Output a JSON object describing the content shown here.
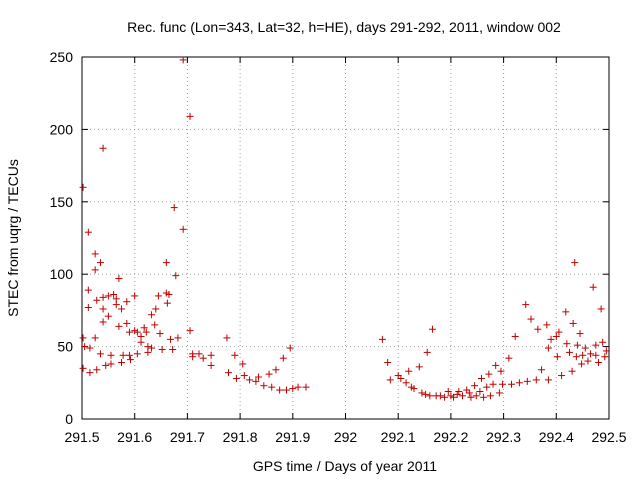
{
  "chart_data": {
    "type": "scatter",
    "title": "Rec. func (Lon=343, Lat=32, h=HE), days 291-292, 2011, window 002",
    "xlabel": "GPS time / Days of year 2011",
    "ylabel": "STEC from uqrg / TECUs",
    "xlim": [
      291.5,
      292.5
    ],
    "ylim": [
      0,
      250
    ],
    "xticks": [
      "291.5",
      "291.6",
      "291.7",
      "291.8",
      "291.9",
      "292",
      "292.1",
      "292.2",
      "292.3",
      "292.4",
      "292.5"
    ],
    "yticks": [
      "0",
      "50",
      "100",
      "150",
      "200",
      "250"
    ],
    "grid": true,
    "marker": "+",
    "color": "#c00000",
    "series": [
      {
        "name": "STEC",
        "points": [
          [
            291.502,
            160
          ],
          [
            291.502,
            56
          ],
          [
            291.502,
            35
          ],
          [
            291.505,
            50
          ],
          [
            291.512,
            129
          ],
          [
            291.512,
            89
          ],
          [
            291.512,
            77
          ],
          [
            291.515,
            49
          ],
          [
            291.515,
            32
          ],
          [
            291.525,
            114
          ],
          [
            291.525,
            103
          ],
          [
            291.525,
            56
          ],
          [
            291.528,
            82
          ],
          [
            291.528,
            34
          ],
          [
            291.535,
            108
          ],
          [
            291.535,
            45
          ],
          [
            291.54,
            187
          ],
          [
            291.54,
            84
          ],
          [
            291.54,
            76
          ],
          [
            291.54,
            67
          ],
          [
            291.545,
            37
          ],
          [
            291.55,
            85
          ],
          [
            291.55,
            71
          ],
          [
            291.555,
            44
          ],
          [
            291.555,
            38
          ],
          [
            291.56,
            86
          ],
          [
            291.565,
            83
          ],
          [
            291.565,
            79
          ],
          [
            291.57,
            97
          ],
          [
            291.57,
            64
          ],
          [
            291.575,
            76
          ],
          [
            291.575,
            39
          ],
          [
            291.578,
            44
          ],
          [
            291.585,
            81
          ],
          [
            291.585,
            66
          ],
          [
            291.59,
            60
          ],
          [
            291.59,
            44
          ],
          [
            291.592,
            41
          ],
          [
            291.6,
            85
          ],
          [
            291.6,
            61
          ],
          [
            291.605,
            60
          ],
          [
            291.605,
            45
          ],
          [
            291.612,
            57
          ],
          [
            291.612,
            53
          ],
          [
            291.618,
            63
          ],
          [
            291.622,
            60
          ],
          [
            291.625,
            50
          ],
          [
            291.625,
            46
          ],
          [
            291.632,
            72
          ],
          [
            291.632,
            49
          ],
          [
            291.638,
            65
          ],
          [
            291.64,
            76
          ],
          [
            291.645,
            85
          ],
          [
            291.648,
            59
          ],
          [
            291.652,
            48
          ],
          [
            291.66,
            108
          ],
          [
            291.66,
            87
          ],
          [
            291.662,
            80
          ],
          [
            291.665,
            86
          ],
          [
            291.668,
            55
          ],
          [
            291.672,
            48
          ],
          [
            291.675,
            146
          ],
          [
            291.678,
            99
          ],
          [
            291.682,
            56
          ],
          [
            291.692,
            131
          ],
          [
            291.692,
            248
          ],
          [
            291.705,
            209
          ],
          [
            291.705,
            61
          ],
          [
            291.71,
            45
          ],
          [
            291.71,
            43
          ],
          [
            291.722,
            45
          ],
          [
            291.73,
            42
          ],
          [
            291.745,
            37
          ],
          [
            291.745,
            44
          ],
          [
            291.775,
            56
          ],
          [
            291.778,
            32
          ],
          [
            291.79,
            44
          ],
          [
            291.793,
            28
          ],
          [
            291.805,
            38
          ],
          [
            291.808,
            30
          ],
          [
            291.818,
            27
          ],
          [
            291.83,
            26
          ],
          [
            291.835,
            29
          ],
          [
            291.845,
            23
          ],
          [
            291.855,
            31
          ],
          [
            291.86,
            22
          ],
          [
            291.868,
            34
          ],
          [
            291.875,
            20
          ],
          [
            291.882,
            42
          ],
          [
            291.888,
            20
          ],
          [
            291.895,
            49
          ],
          [
            291.9,
            21
          ],
          [
            291.91,
            22
          ],
          [
            291.925,
            22
          ],
          [
            292.07,
            55
          ],
          [
            292.08,
            39
          ],
          [
            292.085,
            27
          ],
          [
            292.1,
            30
          ],
          [
            292.105,
            28
          ],
          [
            292.115,
            25
          ],
          [
            292.12,
            33
          ],
          [
            292.125,
            22
          ],
          [
            292.13,
            21
          ],
          [
            292.14,
            36
          ],
          [
            292.145,
            18
          ],
          [
            292.152,
            17
          ],
          [
            292.155,
            46
          ],
          [
            292.16,
            16
          ],
          [
            292.165,
            62
          ],
          [
            292.172,
            16
          ],
          [
            292.18,
            16
          ],
          [
            292.188,
            15
          ],
          [
            292.195,
            19
          ],
          [
            292.2,
            16
          ],
          [
            292.205,
            15
          ],
          [
            292.212,
            17
          ],
          [
            292.215,
            19
          ],
          [
            292.222,
            16
          ],
          [
            292.23,
            20
          ],
          [
            292.235,
            18
          ],
          [
            292.238,
            15
          ],
          [
            292.245,
            23
          ],
          [
            292.248,
            16
          ],
          [
            292.255,
            19
          ],
          [
            292.258,
            28
          ],
          [
            292.262,
            15
          ],
          [
            292.268,
            22
          ],
          [
            292.272,
            31
          ],
          [
            292.275,
            16
          ],
          [
            292.28,
            24
          ],
          [
            292.285,
            37
          ],
          [
            292.292,
            18
          ],
          [
            292.295,
            33
          ],
          [
            292.298,
            24
          ],
          [
            292.31,
            42
          ],
          [
            292.315,
            24
          ],
          [
            292.322,
            57
          ],
          [
            292.33,
            25
          ],
          [
            292.342,
            79
          ],
          [
            292.345,
            26
          ],
          [
            292.352,
            69
          ],
          [
            292.362,
            27
          ],
          [
            292.365,
            62
          ],
          [
            292.372,
            34
          ],
          [
            292.382,
            65
          ],
          [
            292.385,
            27
          ],
          [
            292.385,
            49
          ],
          [
            292.39,
            55
          ],
          [
            292.4,
            57
          ],
          [
            292.402,
            43
          ],
          [
            292.405,
            60
          ],
          [
            292.41,
            30
          ],
          [
            292.418,
            74
          ],
          [
            292.42,
            52
          ],
          [
            292.425,
            46
          ],
          [
            292.43,
            33
          ],
          [
            292.432,
            66
          ],
          [
            292.435,
            108
          ],
          [
            292.438,
            43
          ],
          [
            292.44,
            51
          ],
          [
            292.445,
            59
          ],
          [
            292.448,
            38
          ],
          [
            292.45,
            44
          ],
          [
            292.455,
            49
          ],
          [
            292.46,
            40
          ],
          [
            292.465,
            45
          ],
          [
            292.47,
            91
          ],
          [
            292.475,
            51
          ],
          [
            292.475,
            44
          ],
          [
            292.48,
            39
          ],
          [
            292.485,
            76
          ],
          [
            292.488,
            53
          ],
          [
            292.492,
            43
          ],
          [
            292.495,
            47
          ]
        ]
      }
    ]
  }
}
